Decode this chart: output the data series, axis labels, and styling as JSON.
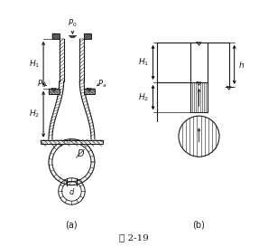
{
  "bg_color": "#ffffff",
  "lc": "#1a1a1a",
  "fs": 6.5,
  "fig_width": 2.97,
  "fig_height": 2.73,
  "caption": "图 2-19",
  "label_a": "(a)",
  "label_b": "(b)"
}
